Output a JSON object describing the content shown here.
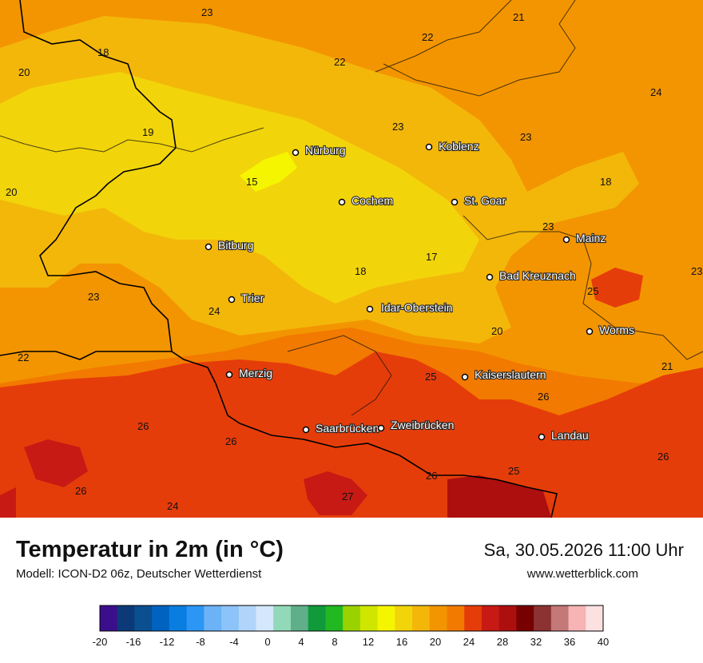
{
  "title": "Temperatur in 2m (in °C)",
  "model": "Modell: ICON-D2 06z, Deutscher Wetterdienst",
  "datetime": "Sa, 30.05.2026 11:00 Uhr",
  "website": "www.wetterblick.com",
  "cities": [
    {
      "name": "Nürburg"
    },
    {
      "name": "Koblenz"
    },
    {
      "name": "Cochem"
    },
    {
      "name": "St. Goar"
    },
    {
      "name": "Mainz"
    },
    {
      "name": "Bitburg"
    },
    {
      "name": "Bad Kreuznach"
    },
    {
      "name": "Trier"
    },
    {
      "name": "Idar-Oberstein"
    },
    {
      "name": "Worms"
    },
    {
      "name": "Merzig"
    },
    {
      "name": "Kaiserslautern"
    },
    {
      "name": "Saarbrücken"
    },
    {
      "name": "Zweibrücken"
    },
    {
      "name": "Landau"
    }
  ],
  "temperature_labels": [
    "23",
    "21",
    "22",
    "18",
    "22",
    "20",
    "24",
    "19",
    "23",
    "23",
    "20",
    "15",
    "18",
    "23",
    "17",
    "18",
    "23",
    "25",
    "24",
    "20",
    "22",
    "21",
    "25",
    "26",
    "26",
    "26",
    "23",
    "26",
    "25",
    "26",
    "26",
    "27",
    "24"
  ],
  "legend": {
    "colors": [
      "#3b0f8c",
      "#0c3a78",
      "#0a4f8f",
      "#0063c0",
      "#0a7ee0",
      "#2c96f5",
      "#6bb2f7",
      "#8cc3f8",
      "#b1d5fa",
      "#d4e7fc",
      "#92d9b9",
      "#5fb08a",
      "#109a3a",
      "#21b821",
      "#9ad200",
      "#cfe600",
      "#f5f500",
      "#f2d40a",
      "#f3b70a",
      "#f39500",
      "#f27a00",
      "#e53d0a",
      "#c71a14",
      "#ad0f0f",
      "#770000",
      "#8c3232",
      "#c47878",
      "#f6b4b4",
      "#fde1e1"
    ],
    "ticks": [
      "-20",
      "-16",
      "-12",
      "-8",
      "-4",
      "0",
      "4",
      "8",
      "12",
      "16",
      "20",
      "24",
      "28",
      "32",
      "36",
      "40"
    ]
  }
}
